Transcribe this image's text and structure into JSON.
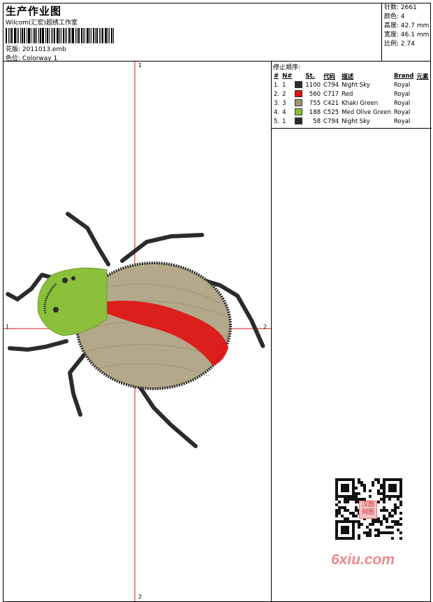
{
  "header": {
    "title": "生产作业图",
    "studio": "Wilcom(汇宏)超绣工作室",
    "design_label": "花版:",
    "design_file": "2011013.emb",
    "colorway_label": "色位:",
    "colorway_value": "Colorway 1"
  },
  "stats": [
    {
      "label": "针数:",
      "value": "2661"
    },
    {
      "label": "颜色:",
      "value": "4"
    },
    {
      "label": "高度:",
      "value": "42.7 mm"
    },
    {
      "label": "宽度:",
      "value": "46.1 mm"
    },
    {
      "label": "比例:",
      "value": "2.74"
    }
  ],
  "color_table": {
    "heading": "停止顺序:",
    "columns": [
      "#",
      "N#",
      "St.",
      "代码",
      "描述",
      "Brand",
      "元素"
    ],
    "rows": [
      {
        "index": "1.",
        "n": "1",
        "stitches": "1100",
        "code": "C794",
        "description": "Night Sky",
        "brand": "Royal",
        "color": "#2b2b2b"
      },
      {
        "index": "2.",
        "n": "2",
        "stitches": "560",
        "code": "C717",
        "description": "Red",
        "brand": "Royal",
        "color": "#e01010"
      },
      {
        "index": "3.",
        "n": "3",
        "stitches": "755",
        "code": "C421",
        "description": "Khaki Green",
        "brand": "Royal",
        "color": "#a09870"
      },
      {
        "index": "4.",
        "n": "4",
        "stitches": "188",
        "code": "C525",
        "description": "Med Olive Green",
        "brand": "Royal",
        "color": "#8ac03a"
      },
      {
        "index": "5.",
        "n": "1",
        "stitches": "58",
        "code": "C794",
        "description": "Night Sky",
        "brand": "Royal",
        "color": "#2b2b2b"
      }
    ]
  },
  "canvas": {
    "axis_top": "1",
    "axis_bottom": "2",
    "axis_left": "1",
    "axis_right": "2",
    "crosshair_color": "#e01010"
  },
  "watermark": {
    "text": "6xiu.com",
    "qr_badge": "汉图 网图",
    "color": "#f08a8a"
  }
}
